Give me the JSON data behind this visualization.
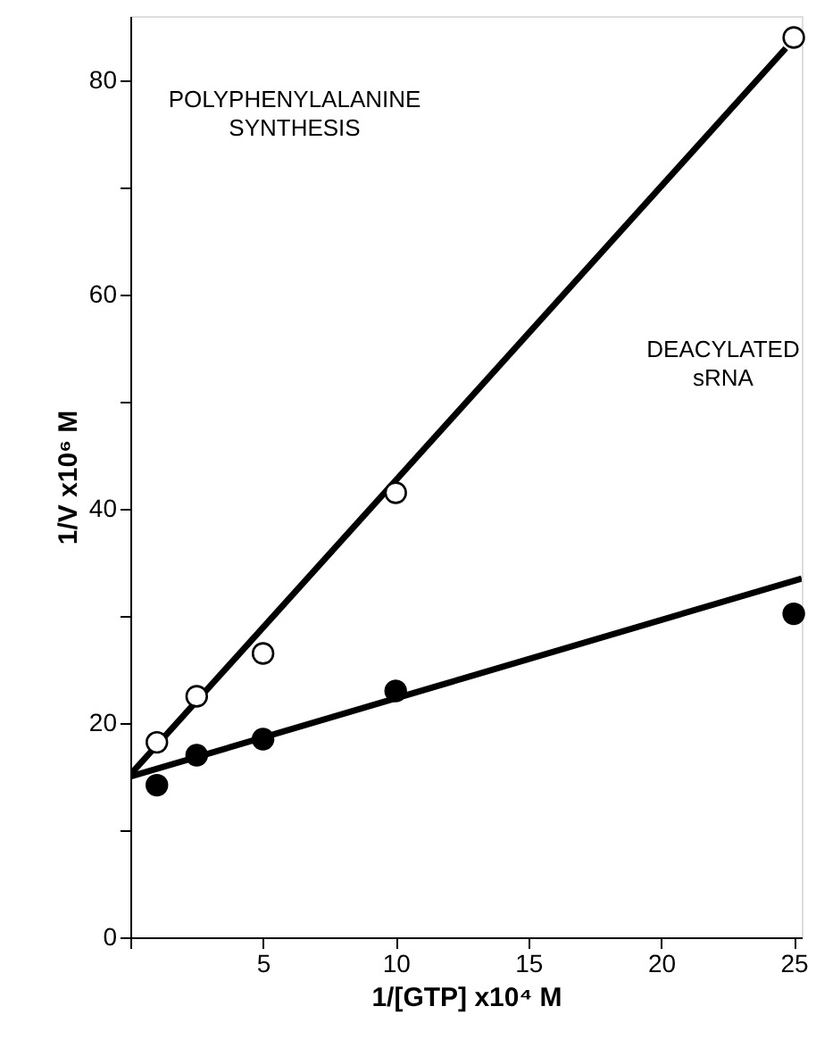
{
  "chart_data": {
    "type": "scatter",
    "xlabel": "1/[GTP] x10⁴ M",
    "ylabel": "1/V x10⁶ M",
    "annotations": [
      "POLYPHENYLALANINE\nSYNTHESIS",
      "DEACYLATED\nsRNA"
    ],
    "series": [
      {
        "type": "line",
        "color": "#000000",
        "x": [
          0,
          24.7
        ],
        "values": [
          15.2,
          83
        ]
      },
      {
        "type": "line",
        "color": "#000000",
        "x": [
          0,
          25.3
        ],
        "values": [
          15,
          33.5
        ]
      },
      {
        "marker": "circle",
        "color": "#ffffff",
        "x": [
          1,
          2.5,
          5,
          10,
          25
        ],
        "values": [
          18.2,
          22.5,
          26.5,
          41.5,
          84
        ]
      },
      {
        "marker": "circle",
        "color": "#000000",
        "x": [
          1,
          2.5,
          5,
          10,
          25
        ],
        "values": [
          14.2,
          17,
          18.5,
          23,
          30.2
        ]
      }
    ],
    "xlim": [
      0,
      25.3
    ],
    "ylim": [
      0,
      86
    ],
    "xticks": [
      {
        "value": 0,
        "label": null
      },
      5,
      10,
      15,
      20,
      25
    ],
    "yticks": [
      0,
      {
        "value": 10,
        "label": null
      },
      20,
      {
        "value": 30,
        "label": null
      },
      40,
      {
        "value": 50,
        "label": null
      },
      60,
      {
        "value": 70,
        "label": null
      },
      80
    ],
    "grid": false
  }
}
